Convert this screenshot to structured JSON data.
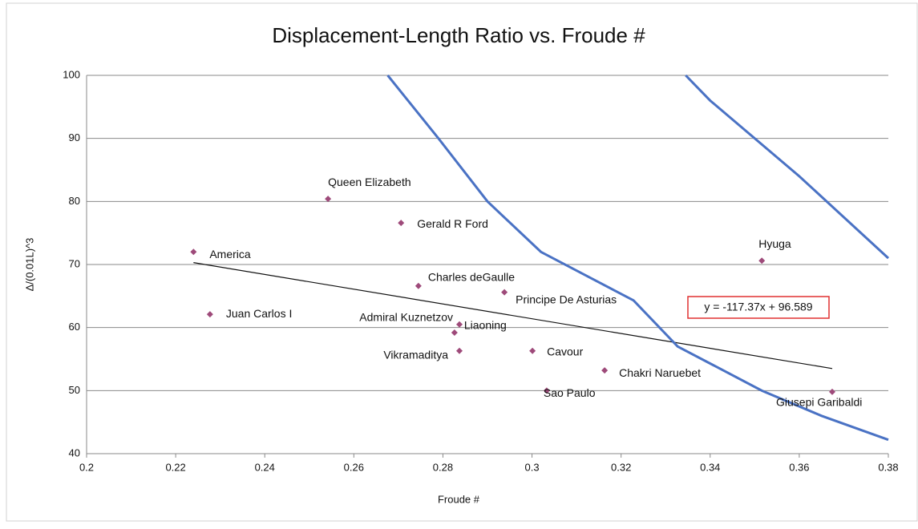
{
  "chart_data": {
    "type": "scatter",
    "title": "Displacement-Length Ratio vs. Froude #",
    "x_label": "Froude #",
    "y_label": "Δ/(0.01L)^3",
    "xlim": [
      0.2,
      0.38
    ],
    "ylim": [
      40,
      100
    ],
    "xticks": [
      0.2,
      0.22,
      0.24,
      0.26,
      0.28,
      0.3,
      0.32,
      0.34,
      0.36,
      0.38
    ],
    "yticks": [
      40,
      50,
      60,
      70,
      80,
      90,
      100
    ],
    "grid": true,
    "annotation": "y = -117.37x + 96.589",
    "series": [
      {
        "type": "scatter",
        "color": "#9e4a7a",
        "labels": [
          "America",
          "Queen Elizabeth",
          "Gerald R Ford",
          "Juan Carlos I",
          "Charles deGaulle",
          "Principe De Asturias",
          "Admiral Kuznetzov",
          "Liaoning",
          "Vikramaditya",
          "Cavour",
          "Chakri Naruebet",
          "Sao Paulo",
          "Hyuga",
          "Giusepi Garibaldi"
        ],
        "x": [
          0.224,
          0.2542,
          0.2706,
          0.2277,
          0.2745,
          0.2938,
          0.2837,
          0.2826,
          0.2837,
          0.3001,
          0.3163,
          0.3033,
          0.3516,
          0.3674
        ],
        "values": [
          72,
          80.4,
          76.6,
          62.1,
          66.6,
          65.6,
          60.5,
          59.2,
          56.3,
          56.3,
          53.2,
          50,
          70.6,
          49.8
        ]
      },
      {
        "type": "line",
        "color": "#111111",
        "x": [
          0.224,
          0.3674
        ],
        "values": [
          70.3,
          53.5
        ]
      },
      {
        "type": "line",
        "color": "#4a72c4",
        "x": [
          0.2676,
          0.279,
          0.29,
          0.302,
          0.3228,
          0.3327,
          0.3516,
          0.365,
          0.38
        ],
        "values": [
          100,
          90,
          80,
          72,
          64.3,
          57,
          50,
          46,
          42.2
        ]
      },
      {
        "type": "line",
        "color": "#4a72c4",
        "x": [
          0.3345,
          0.34,
          0.36,
          0.38
        ],
        "values": [
          100,
          96,
          84,
          71
        ]
      }
    ]
  }
}
